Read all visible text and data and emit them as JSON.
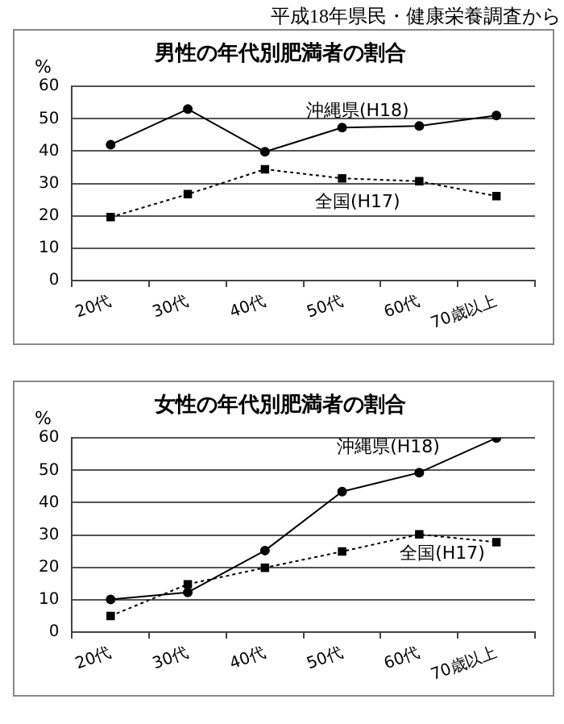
{
  "chart_data": [
    {
      "type": "line",
      "title": "男性の年代別肥満者の割合",
      "ylabel": "%",
      "annotations": [
        "平成18年県民・健康栄養調査から"
      ],
      "categories": [
        "20代",
        "30代",
        "40代",
        "50代",
        "60代",
        "70歳以上"
      ],
      "ylim": [
        0,
        60
      ],
      "yticks": [
        0,
        10,
        20,
        30,
        40,
        50,
        60
      ],
      "grid": "y",
      "legend": false,
      "series": [
        {
          "name": "沖縄県(H18)",
          "color": "#000000",
          "marker": "circle",
          "line_style": "solid",
          "values": [
            42,
            53,
            39.8,
            47.3,
            47.8,
            51
          ]
        },
        {
          "name": "全国(H17)",
          "color": "#000000",
          "marker": "square",
          "line_style": "dotted",
          "values": [
            19.6,
            26.7,
            34.4,
            31.6,
            30.7,
            26.1
          ]
        }
      ]
    },
    {
      "type": "line",
      "title": "女性の年代別肥満者の割合",
      "ylabel": "%",
      "categories": [
        "20代",
        "30代",
        "40代",
        "50代",
        "60代",
        "70歳以上"
      ],
      "ylim": [
        0,
        60
      ],
      "yticks": [
        0,
        10,
        20,
        30,
        40,
        50,
        60
      ],
      "grid": "y",
      "legend": false,
      "series": [
        {
          "name": "沖縄県(H18)",
          "color": "#000000",
          "marker": "circle",
          "line_style": "solid",
          "values": [
            10.1,
            12.3,
            25.2,
            43.4,
            49.3,
            60
          ]
        },
        {
          "name": "全国(H17)",
          "color": "#000000",
          "marker": "square",
          "line_style": "dotted",
          "values": [
            5,
            14.8,
            19.9,
            24.9,
            30.2,
            27.8
          ]
        }
      ]
    }
  ]
}
